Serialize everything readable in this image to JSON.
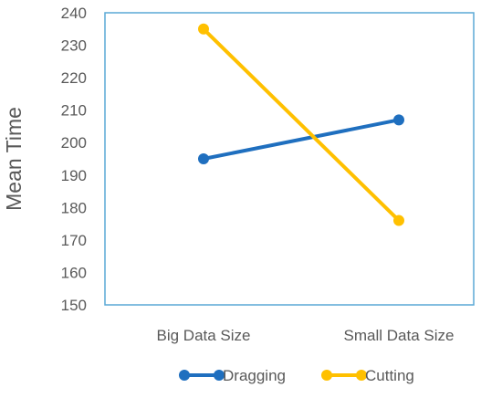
{
  "chart_data": {
    "type": "line",
    "title": "",
    "xlabel": "",
    "ylabel": "Mean Time",
    "categories": [
      "Big Data Size",
      "Small Data Size"
    ],
    "ylim": [
      150,
      240
    ],
    "yticks": [
      150,
      160,
      170,
      180,
      190,
      200,
      210,
      220,
      230,
      240
    ],
    "grid": false,
    "legend_position": "bottom",
    "series": [
      {
        "name": "Dragging",
        "values": [
          195,
          207
        ],
        "color": "#1f6fbf"
      },
      {
        "name": "Cutting",
        "values": [
          235,
          176
        ],
        "color": "#ffc000"
      }
    ]
  },
  "style": {
    "plot_border_color": "#5aa9d6",
    "text_color": "#595959"
  }
}
